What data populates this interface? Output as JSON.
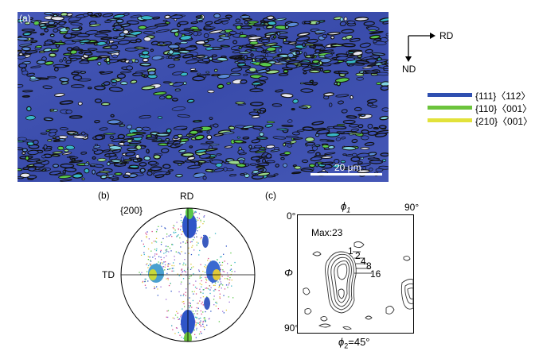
{
  "panel_a": {
    "label": "(a)",
    "scale_bar": "20 μm",
    "orientation": {
      "horizontal": "RD",
      "vertical": "ND"
    }
  },
  "legend": [
    {
      "text": "{111}〈112〉",
      "color": "#2f4fb0"
    },
    {
      "text": "{110}〈001〉",
      "color": "#6cc43c"
    },
    {
      "text": "{210}〈001〉",
      "color": "#e2e23a"
    }
  ],
  "panel_b": {
    "label": "(b)",
    "pole": "{200}",
    "top_axis": "RD",
    "left_axis": "TD"
  },
  "panel_c": {
    "label": "(c)",
    "phi1_symbol": "ϕ",
    "phi1_sub": "1",
    "phi1_max": "90°",
    "phi_min": "0°",
    "phi_max": "90°",
    "Phi_symbol": "Φ",
    "max_label": "Max:23",
    "contours": [
      "1",
      "2",
      "4",
      "8",
      "16"
    ],
    "phi2_symbol": "ϕ",
    "phi2_sub": "2",
    "phi2_value": "=45°"
  },
  "colors": {
    "matrix_blue": "#3a4fb2",
    "grain_green": "#5ac84a",
    "grain_cyan": "#38b6c8",
    "boundary": "#111111"
  }
}
